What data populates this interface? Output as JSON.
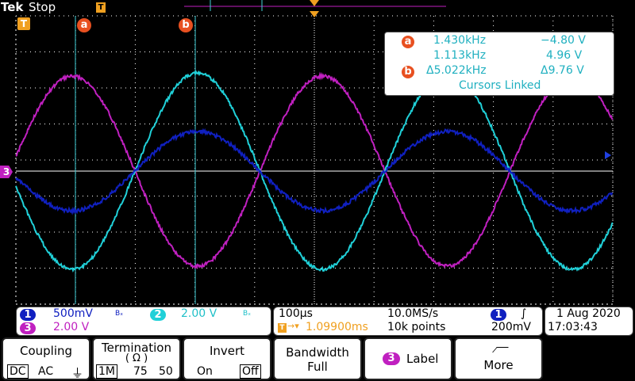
{
  "header": {
    "brand": "Tek",
    "state": "Stop"
  },
  "cursor_readout": {
    "a_freq": "1.430kHz",
    "a_volt": "−4.80 V",
    "b_freq": "1.113kHz",
    "b_volt": "4.96 V",
    "delta_freq": "Δ5.022kHz",
    "delta_volt": "Δ9.76 V",
    "linked": "Cursors Linked",
    "a_label": "a",
    "b_label": "b"
  },
  "markers": {
    "trigger": "T",
    "cursor_a": "a",
    "cursor_b": "b",
    "ch3_ref": "3"
  },
  "channels": {
    "ch1": {
      "num": "1",
      "scale": "500mV",
      "bw": "Bₓ",
      "color": "#1020c0"
    },
    "ch2": {
      "num": "2",
      "scale": "2.00 V",
      "bw": "Bₓ",
      "color": "#20d0d8"
    },
    "ch3": {
      "num": "3",
      "scale": "2.00 V",
      "color": "#c020c0"
    }
  },
  "timebase": {
    "scale": "100µs",
    "sample_rate": "10.0MS/s",
    "trigger_pos": "1.09900ms",
    "record": "10k points",
    "trig_src": "1",
    "trig_level": "200mV",
    "trig_slope": "∫"
  },
  "datetime": {
    "date": "1 Aug 2020",
    "time": "17:03:43"
  },
  "menu": {
    "coupling": {
      "title": "Coupling",
      "options": [
        "DC",
        "AC",
        "⏚"
      ]
    },
    "termination": {
      "title": "Termination",
      "sub": "( Ω )",
      "options": [
        "1M",
        "75",
        "50"
      ]
    },
    "invert": {
      "title": "Invert",
      "options": [
        "On",
        "Off"
      ]
    },
    "bandwidth": {
      "title": "Bandwidth",
      "value": "Full"
    },
    "label": {
      "num": "3",
      "title": "Label"
    },
    "more": {
      "title": "More"
    }
  }
}
